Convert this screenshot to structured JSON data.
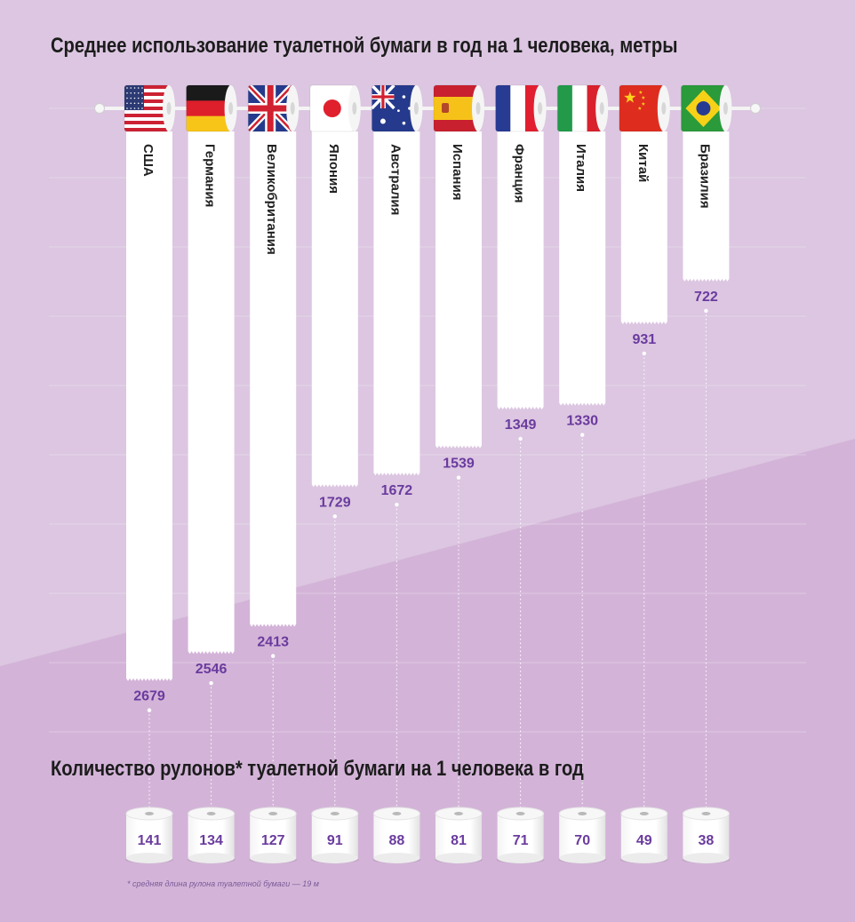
{
  "title": "Среднее использование туалетной бумаги в год на 1 человека, метры",
  "rolls_title": "Количество рулонов* туалетной бумаги на 1 человека в год",
  "footnote": "* средняя длина рулона туалетной бумаги — 19 м",
  "colors": {
    "background": "#dcc6e1",
    "background_lower": "#d3b4d8",
    "value_text": "#6a3b9e",
    "title_text": "#1c1c1c",
    "paper": "#ffffff"
  },
  "chart_data": {
    "type": "bar",
    "title": "Среднее использование туалетной бумаги в год на 1 человека, метры",
    "categories": [
      "США",
      "Германия",
      "Великобритания",
      "Япония",
      "Австралия",
      "Испания",
      "Франция",
      "Италия",
      "Китай",
      "Бразилия"
    ],
    "flags": [
      "us-flag",
      "germany-flag",
      "uk-flag",
      "japan-flag",
      "australia-flag",
      "spain-flag",
      "france-flag",
      "italy-flag",
      "china-flag",
      "brazil-flag"
    ],
    "series": [
      {
        "values": [
          2679,
          2546,
          2413,
          1729,
          1672,
          1539,
          1349,
          1330,
          931,
          722
        ]
      }
    ],
    "rolls": {
      "title": "Количество рулонов* туалетной бумаги на 1 человека в год",
      "values": [
        141,
        134,
        127,
        91,
        88,
        81,
        71,
        70,
        49,
        38
      ]
    },
    "orientation": "vertical-hanging",
    "grid": true,
    "legend": "none"
  }
}
